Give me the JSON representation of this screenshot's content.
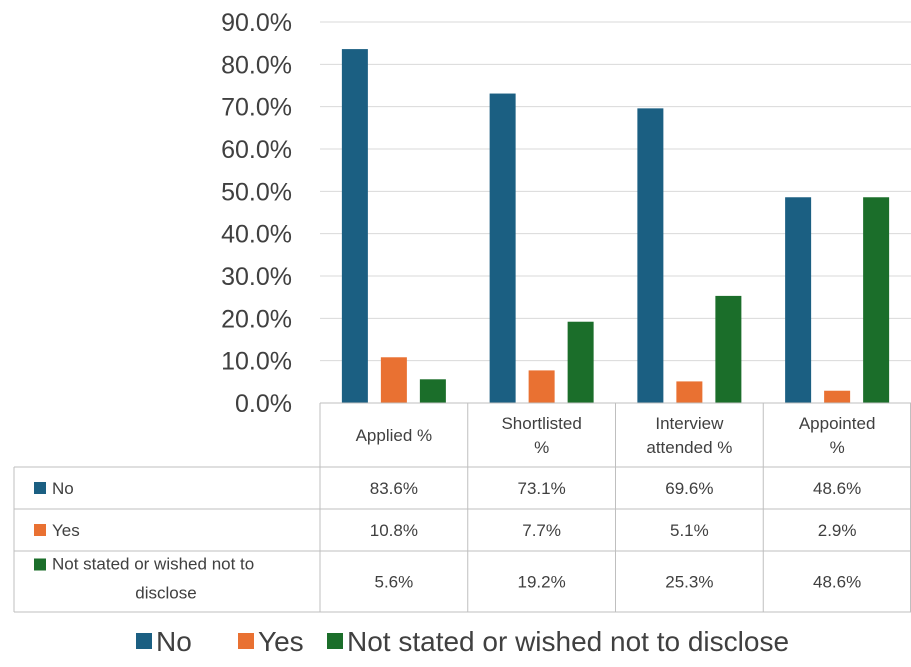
{
  "chart_data": {
    "type": "bar",
    "categories": [
      "Applied %",
      "Shortlisted %",
      "Interview attended %",
      "Appointed %"
    ],
    "category_lines": [
      [
        "Applied %"
      ],
      [
        "Shortlisted",
        "%"
      ],
      [
        "Interview",
        "attended %"
      ],
      [
        "Appointed",
        "%"
      ]
    ],
    "series": [
      {
        "name": "No",
        "color": "#1b5f82",
        "values": [
          83.6,
          73.1,
          69.6,
          48.6
        ],
        "labels": [
          "83.6%",
          "73.1%",
          "69.6%",
          "48.6%"
        ],
        "name_lines": [
          "No"
        ]
      },
      {
        "name": "Yes",
        "color": "#e97132",
        "values": [
          10.8,
          7.7,
          5.1,
          2.9
        ],
        "labels": [
          "10.8%",
          "7.7%",
          "5.1%",
          "2.9%"
        ],
        "name_lines": [
          "Yes"
        ]
      },
      {
        "name": "Not stated or wished not to disclose",
        "color": "#1b6e2a",
        "values": [
          5.6,
          19.2,
          25.3,
          48.6
        ],
        "labels": [
          "5.6%",
          "19.2%",
          "25.3%",
          "48.6%"
        ],
        "name_lines": [
          "Not stated or wished not to",
          "disclose"
        ]
      }
    ],
    "ylim": [
      0,
      90
    ],
    "yticks": [
      "0.0%",
      "10.0%",
      "20.0%",
      "30.0%",
      "40.0%",
      "50.0%",
      "60.0%",
      "70.0%",
      "80.0%",
      "90.0%"
    ],
    "grid": true,
    "legend": "bottom",
    "data_table": true
  }
}
